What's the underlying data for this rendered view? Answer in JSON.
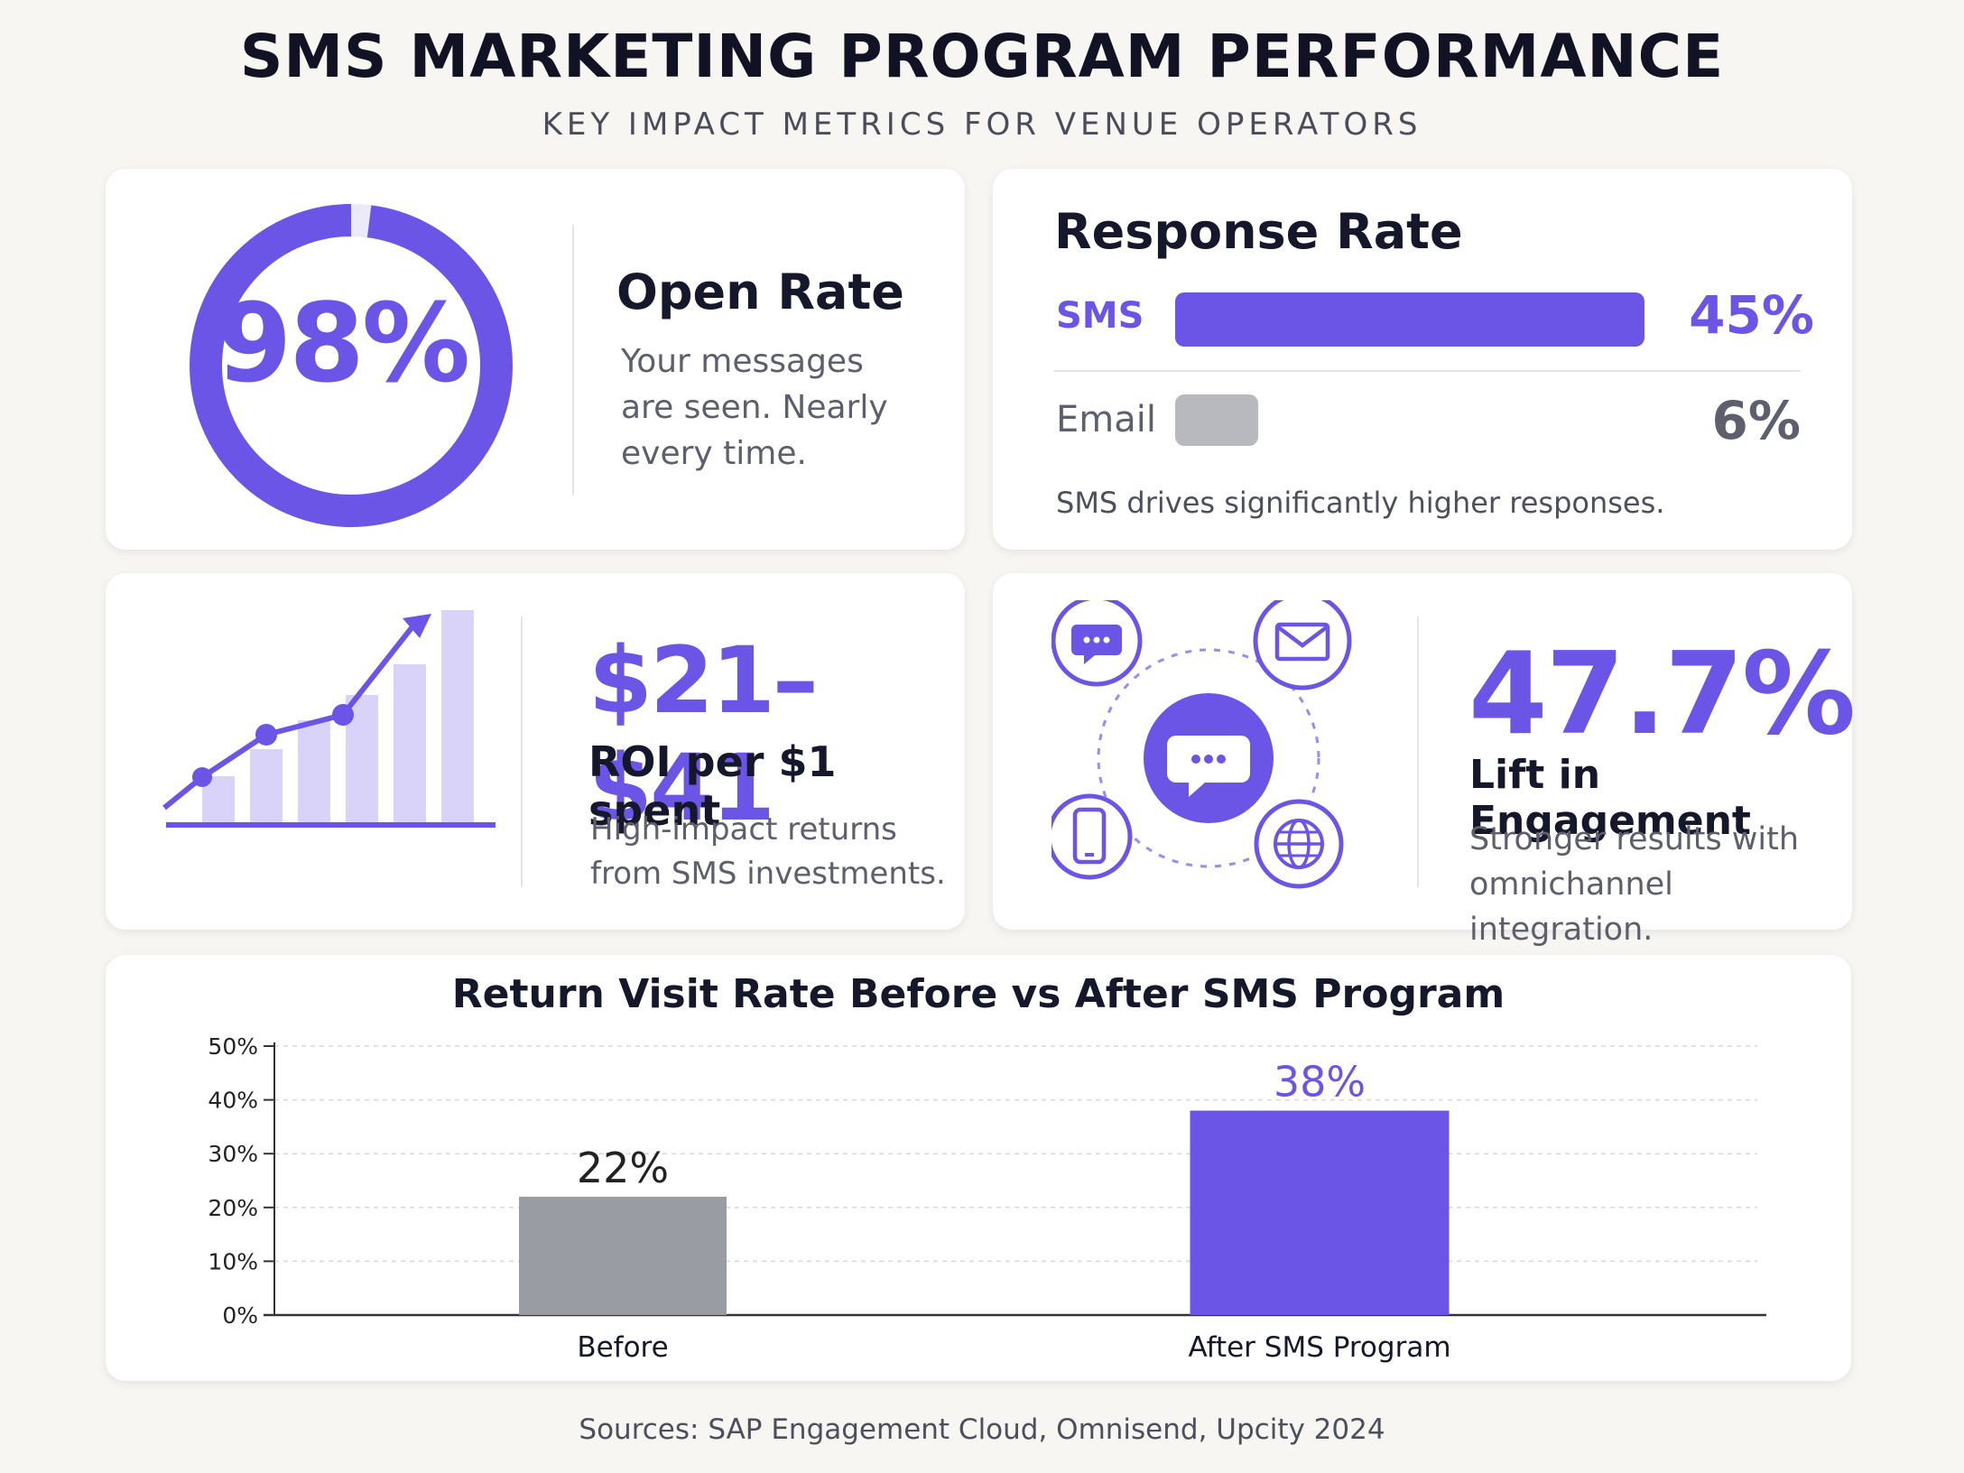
{
  "header": {
    "title": "SMS MARKETING PROGRAM PERFORMANCE",
    "subtitle": "KEY IMPACT METRICS FOR VENUE OPERATORS"
  },
  "colors": {
    "accent": "#6b55e6",
    "accent_light": "#d9d3fa",
    "gray": "#9a9ca3"
  },
  "open_rate": {
    "value_label": "98%",
    "fraction": 0.98,
    "heading": "Open Rate",
    "lines": [
      "Your messages",
      "are seen. Nearly",
      "every time."
    ]
  },
  "response_rate": {
    "heading": "Response Rate",
    "rows": [
      {
        "label": "SMS",
        "value_label": "45%",
        "value": 45,
        "color": "#6b55e6"
      },
      {
        "label": "Email",
        "value_label": "6%",
        "value": 6,
        "color": "#b8b9be"
      }
    ],
    "note": "SMS drives significantly higher responses."
  },
  "roi": {
    "value_label": "$21–$41",
    "label": "ROI per $1 spent",
    "lines": [
      "High-impact returns",
      "from SMS investments."
    ],
    "icon": "growth-chart-icon"
  },
  "engagement": {
    "value_label": "47.7%",
    "label": "Lift in Engagement",
    "lines": [
      "Stronger results with",
      "omnichannel integration."
    ],
    "icons": [
      "chat-bubble-icon",
      "envelope-icon",
      "message-center-icon",
      "smartphone-icon",
      "globe-icon"
    ]
  },
  "chart_data": {
    "type": "bar",
    "title": "Return Visit Rate Before vs After SMS Program",
    "categories": [
      "Before",
      "After SMS Program"
    ],
    "values": [
      22,
      38
    ],
    "value_labels": [
      "22%",
      "38%"
    ],
    "colors": [
      "#9a9ca3",
      "#6b55e6"
    ],
    "y_ticks": [
      "0%",
      "10%",
      "20%",
      "30%",
      "40%",
      "50%"
    ],
    "ylim": [
      0,
      50
    ],
    "grid": true
  },
  "footer": {
    "sources": "Sources: SAP Engagement Cloud,  Omnisend, Upcity 2024"
  }
}
